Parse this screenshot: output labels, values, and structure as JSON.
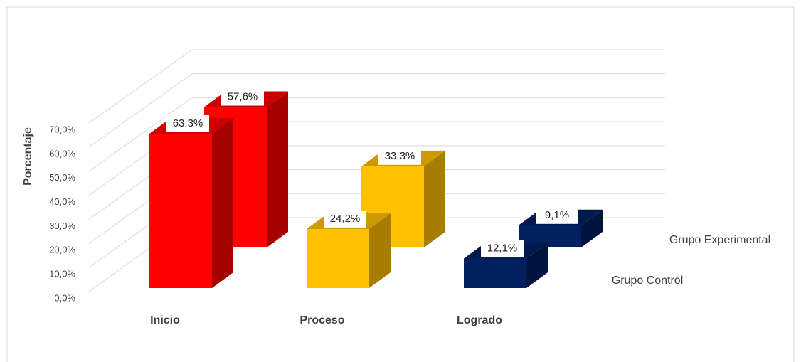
{
  "chart_data": {
    "type": "bar3d",
    "y_label": "Porcentaje",
    "categories": [
      "Inicio",
      "Proceso",
      "Logrado"
    ],
    "colors": [
      "#ff0000",
      "#ffc000",
      "#002060"
    ],
    "series": [
      {
        "name": "Grupo Control",
        "values": [
          63.3,
          24.2,
          12.1
        ],
        "value_labels": [
          "63,3%",
          "24,2%",
          "12,1%"
        ]
      },
      {
        "name": "Grupo Experimental",
        "values": [
          57.6,
          33.3,
          9.1
        ],
        "value_labels": [
          "57,6%",
          "33,3%",
          "9,1%"
        ]
      }
    ],
    "ylim": [
      0,
      70
    ],
    "yticks": [
      {
        "value": 0,
        "label": "0,0%"
      },
      {
        "value": 10,
        "label": "10,0%"
      },
      {
        "value": 20,
        "label": "20,0%"
      },
      {
        "value": 30,
        "label": "30,0%"
      },
      {
        "value": 40,
        "label": "40,0%"
      },
      {
        "value": 50,
        "label": "50,0%"
      },
      {
        "value": 60,
        "label": "60,0%"
      },
      {
        "value": 70,
        "label": "70,0%"
      }
    ],
    "grid": true
  }
}
